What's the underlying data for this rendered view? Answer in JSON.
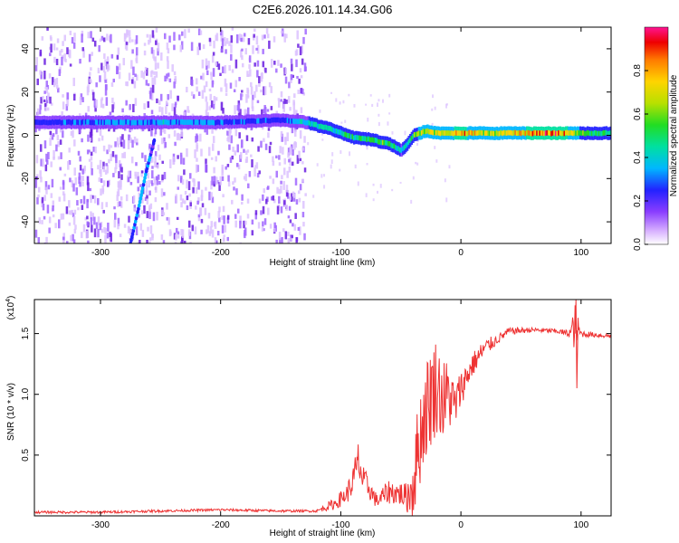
{
  "title": "C2E6.2026.101.14.34.G06",
  "colors": {
    "axis": "#000000",
    "snr_line": "#ee3333",
    "spectro_points": "#6a1fe0",
    "colormap": [
      "#ffffff",
      "#d9b3ff",
      "#9b4dff",
      "#6a1fe0",
      "#2222ff",
      "#00b7ff",
      "#00e0a0",
      "#22dd22",
      "#b8e000",
      "#ffd400",
      "#ff7a00",
      "#ee0000",
      "#ff1493"
    ]
  },
  "chart_data": [
    {
      "id": "spectrogram",
      "type": "heatmap",
      "xlabel": "Height of straight line (km)",
      "ylabel": "Frequency (Hz)",
      "xlim": [
        -355,
        125
      ],
      "ylim": [
        -50,
        50
      ],
      "xticks": [
        -300,
        -200,
        -100,
        0,
        100
      ],
      "xtick_labels": [
        "-300",
        "-200",
        "-100",
        "0",
        "100"
      ],
      "yticks": [
        -40,
        -20,
        0,
        20,
        40
      ],
      "ytick_labels": [
        "-40",
        "-20",
        "0",
        "20",
        "40"
      ],
      "noise_region_x": [
        -355,
        -130
      ],
      "ridge": {
        "x": [
          -355,
          -300,
          -250,
          -200,
          -150,
          -130,
          -110,
          -90,
          -75,
          -60,
          -50,
          -45,
          -40,
          -30,
          -20,
          -10,
          0,
          20,
          40,
          60,
          80,
          90,
          100,
          125
        ],
        "frequency": [
          6,
          6,
          6,
          6,
          7,
          6,
          3,
          -1,
          -2,
          -4,
          -7,
          -4,
          0,
          2,
          1,
          1,
          1,
          1,
          1,
          1,
          1,
          1,
          1,
          1
        ],
        "amplitude": [
          0.3,
          0.35,
          0.4,
          0.35,
          0.3,
          0.45,
          0.5,
          0.5,
          0.55,
          0.6,
          0.45,
          0.5,
          0.6,
          0.7,
          0.75,
          0.8,
          0.85,
          0.7,
          0.75,
          0.85,
          0.9,
          0.8,
          0.6,
          0.5
        ]
      },
      "secondary_track": {
        "x": [
          -275,
          -268,
          -262,
          -255
        ],
        "frequency": [
          -50,
          -33,
          -17,
          -2
        ],
        "amplitude": [
          0.3,
          0.4,
          0.4,
          0.3
        ]
      },
      "colorbar": {
        "label": "Normalized spectral amplitude",
        "range": [
          0,
          1
        ],
        "ticks": [
          0.0,
          0.2,
          0.4,
          0.6,
          0.8
        ],
        "tick_labels": [
          "0.0",
          "0.2",
          "0.4",
          "0.6",
          "0.8"
        ]
      }
    },
    {
      "id": "snr",
      "type": "line",
      "xlabel": "Height of straight line (km)",
      "ylabel": "SNR (10 * v/v)",
      "y_multiplier": "(x10",
      "y_multiplier_exp": "4",
      "y_multiplier_close": ")",
      "xlim": [
        -355,
        125
      ],
      "ylim": [
        0,
        1.78
      ],
      "xticks": [
        -300,
        -200,
        -100,
        0,
        100
      ],
      "xtick_labels": [
        "-300",
        "-200",
        "-100",
        "0",
        "100"
      ],
      "yticks": [
        0.5,
        1.0,
        1.5
      ],
      "ytick_labels": [
        "0.5",
        "1.0",
        "1.5"
      ],
      "series": [
        {
          "name": "SNR",
          "x": [
            -355,
            -300,
            -250,
            -200,
            -150,
            -120,
            -105,
            -95,
            -90,
            -85,
            -82,
            -78,
            -70,
            -60,
            -50,
            -45,
            -40,
            -35,
            -30,
            -25,
            -20,
            -15,
            -10,
            -5,
            0,
            10,
            20,
            30,
            40,
            60,
            80,
            90,
            95,
            100,
            110,
            125
          ],
          "y": [
            0.03,
            0.03,
            0.04,
            0.05,
            0.04,
            0.04,
            0.1,
            0.18,
            0.28,
            0.45,
            0.3,
            0.25,
            0.12,
            0.2,
            0.18,
            0.15,
            0.25,
            0.6,
            0.85,
            1.0,
            1.08,
            0.95,
            1.0,
            0.9,
            1.05,
            1.25,
            1.38,
            1.45,
            1.52,
            1.53,
            1.52,
            1.5,
            1.55,
            1.5,
            1.49,
            1.48
          ],
          "noise": [
            0.01,
            0.01,
            0.01,
            0.01,
            0.01,
            0.01,
            0.05,
            0.08,
            0.12,
            0.2,
            0.12,
            0.1,
            0.06,
            0.1,
            0.1,
            0.12,
            0.3,
            0.4,
            0.4,
            0.45,
            0.4,
            0.35,
            0.3,
            0.2,
            0.15,
            0.1,
            0.08,
            0.04,
            0.03,
            0.02,
            0.02,
            0.03,
            0.2,
            0.03,
            0.02,
            0.02
          ]
        }
      ]
    }
  ]
}
